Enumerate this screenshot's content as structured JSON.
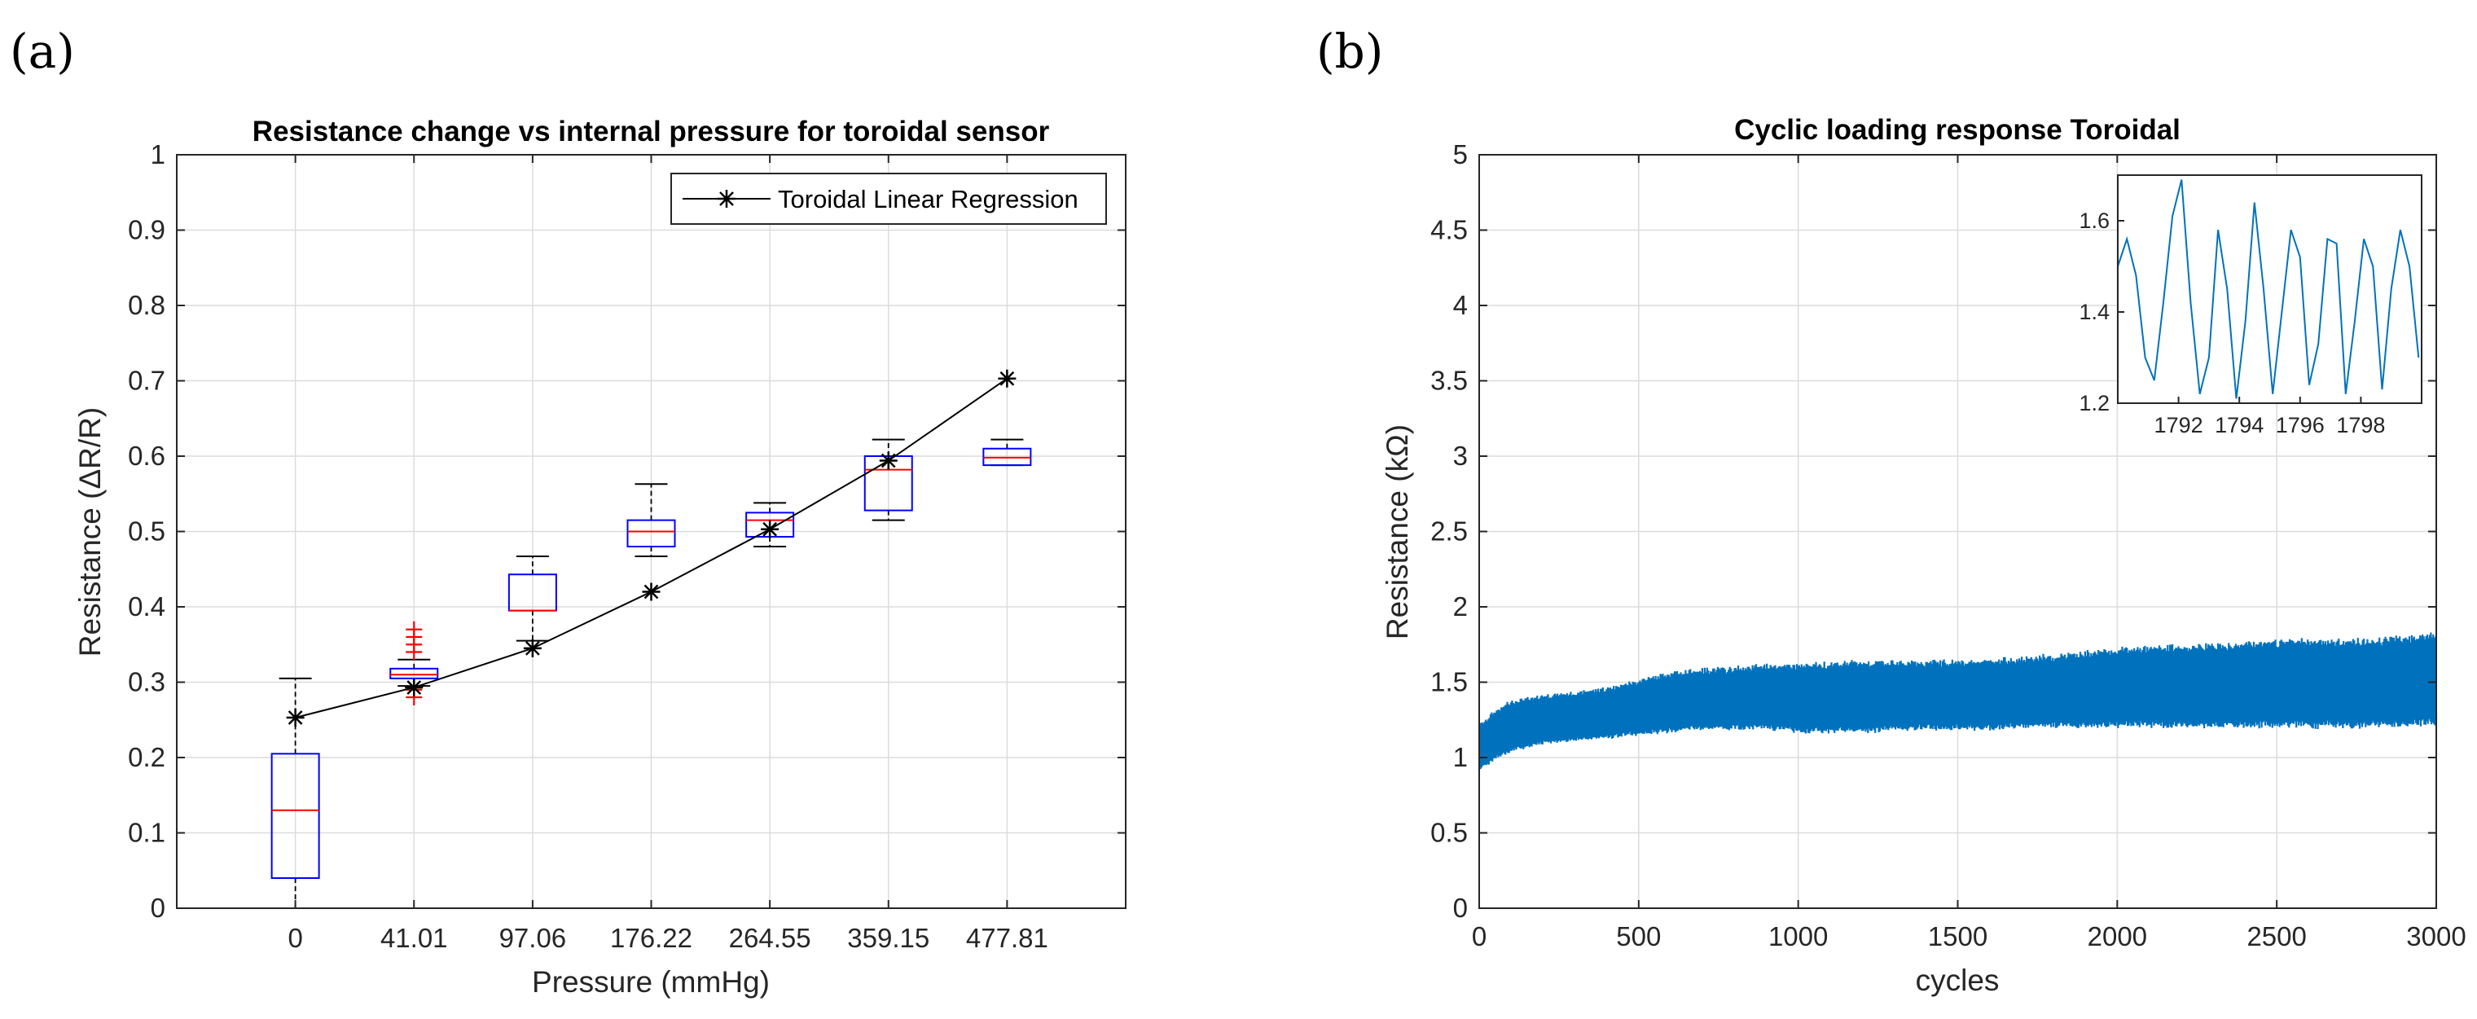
{
  "panels": {
    "a": "(a)",
    "b": "(b)"
  },
  "chart_data": [
    {
      "type": "box",
      "title": "Resistance change vs internal pressure for toroidal sensor",
      "xlabel": "Pressure (mmHg)",
      "ylabel": "Resistance (ΔR/R)",
      "ylim": [
        0,
        1
      ],
      "yticks": [
        "0",
        "0.1",
        "0.2",
        "0.3",
        "0.4",
        "0.5",
        "0.6",
        "0.7",
        "0.8",
        "0.9",
        "1"
      ],
      "grid": true,
      "categories": [
        "0",
        "41.01",
        "97.06",
        "176.22",
        "264.55",
        "359.15",
        "477.81"
      ],
      "boxes": [
        {
          "whisker_low": 0.0,
          "q1": 0.04,
          "median": 0.13,
          "q3": 0.205,
          "whisker_high": 0.305,
          "outliers": []
        },
        {
          "whisker_low": 0.295,
          "q1": 0.305,
          "median": 0.31,
          "q3": 0.318,
          "whisker_high": 0.33,
          "outliers": [
            0.28,
            0.29,
            0.34,
            0.35,
            0.36,
            0.37
          ]
        },
        {
          "whisker_low": 0.355,
          "q1": 0.395,
          "median": 0.395,
          "q3": 0.443,
          "whisker_high": 0.467,
          "outliers": []
        },
        {
          "whisker_low": 0.467,
          "q1": 0.48,
          "median": 0.5,
          "q3": 0.515,
          "whisker_high": 0.563,
          "outliers": []
        },
        {
          "whisker_low": 0.48,
          "q1": 0.493,
          "median": 0.515,
          "q3": 0.525,
          "whisker_high": 0.538,
          "outliers": []
        },
        {
          "whisker_low": 0.515,
          "q1": 0.528,
          "median": 0.582,
          "q3": 0.6,
          "whisker_high": 0.622,
          "outliers": []
        },
        {
          "whisker_low": 0.588,
          "q1": 0.588,
          "median": 0.598,
          "q3": 0.61,
          "whisker_high": 0.622,
          "outliers": []
        }
      ],
      "series": [
        {
          "name": "Toroidal Linear Regression",
          "values": [
            0.253,
            0.293,
            0.345,
            0.42,
            0.503,
            0.594,
            0.703
          ]
        }
      ],
      "legend": "top-right",
      "colors": {
        "box": "#0000ff",
        "median": "#ff0000",
        "outlier": "#ff0000",
        "whisker": "#000000",
        "line": "#000000"
      }
    },
    {
      "type": "line",
      "title": "Cyclic loading response Toroidal",
      "xlabel": "cycles",
      "ylabel": "Resistance (kΩ)",
      "xlim": [
        0,
        3000
      ],
      "ylim": [
        0,
        5
      ],
      "xticks": [
        "0",
        "500",
        "1000",
        "1500",
        "2000",
        "2500",
        "3000"
      ],
      "yticks": [
        "0",
        "0.5",
        "1",
        "1.5",
        "2",
        "2.5",
        "3",
        "3.5",
        "4",
        "4.5",
        "5"
      ],
      "grid": true,
      "series": [
        {
          "name": "Resistance",
          "x": [
            0,
            50,
            100,
            200,
            300,
            400,
            500,
            600,
            700,
            800,
            900,
            1000,
            1200,
            1400,
            1600,
            1800,
            2000,
            2200,
            2400,
            2600,
            2800,
            3000
          ],
          "lower": [
            0.92,
            1.0,
            1.05,
            1.1,
            1.12,
            1.14,
            1.16,
            1.18,
            1.2,
            1.2,
            1.2,
            1.18,
            1.18,
            1.2,
            1.2,
            1.22,
            1.22,
            1.22,
            1.22,
            1.22,
            1.22,
            1.24
          ],
          "upper": [
            1.2,
            1.3,
            1.36,
            1.4,
            1.42,
            1.45,
            1.5,
            1.55,
            1.57,
            1.58,
            1.6,
            1.6,
            1.62,
            1.62,
            1.63,
            1.66,
            1.7,
            1.72,
            1.74,
            1.76,
            1.76,
            1.8
          ]
        }
      ],
      "color": "#0072bd",
      "inset": {
        "xlim": [
          1790,
          1800
        ],
        "ylim": [
          1.2,
          1.7
        ],
        "xticks": [
          "1792",
          "1794",
          "1796",
          "1798"
        ],
        "yticks": [
          "1.2",
          "1.4",
          "1.6"
        ],
        "x": [
          1790.0,
          1790.3,
          1790.6,
          1790.9,
          1791.2,
          1791.5,
          1791.8,
          1792.1,
          1792.4,
          1792.7,
          1793.0,
          1793.3,
          1793.6,
          1793.9,
          1794.2,
          1794.5,
          1794.8,
          1795.1,
          1795.4,
          1795.7,
          1796.0,
          1796.3,
          1796.6,
          1796.9,
          1797.2,
          1797.5,
          1797.8,
          1798.1,
          1798.4,
          1798.7,
          1799.0,
          1799.3,
          1799.6,
          1799.9
        ],
        "y": [
          1.5,
          1.56,
          1.48,
          1.3,
          1.25,
          1.42,
          1.61,
          1.69,
          1.42,
          1.22,
          1.3,
          1.58,
          1.45,
          1.21,
          1.38,
          1.64,
          1.45,
          1.22,
          1.4,
          1.58,
          1.52,
          1.24,
          1.33,
          1.56,
          1.55,
          1.22,
          1.38,
          1.56,
          1.5,
          1.23,
          1.45,
          1.58,
          1.5,
          1.3
        ]
      }
    }
  ]
}
